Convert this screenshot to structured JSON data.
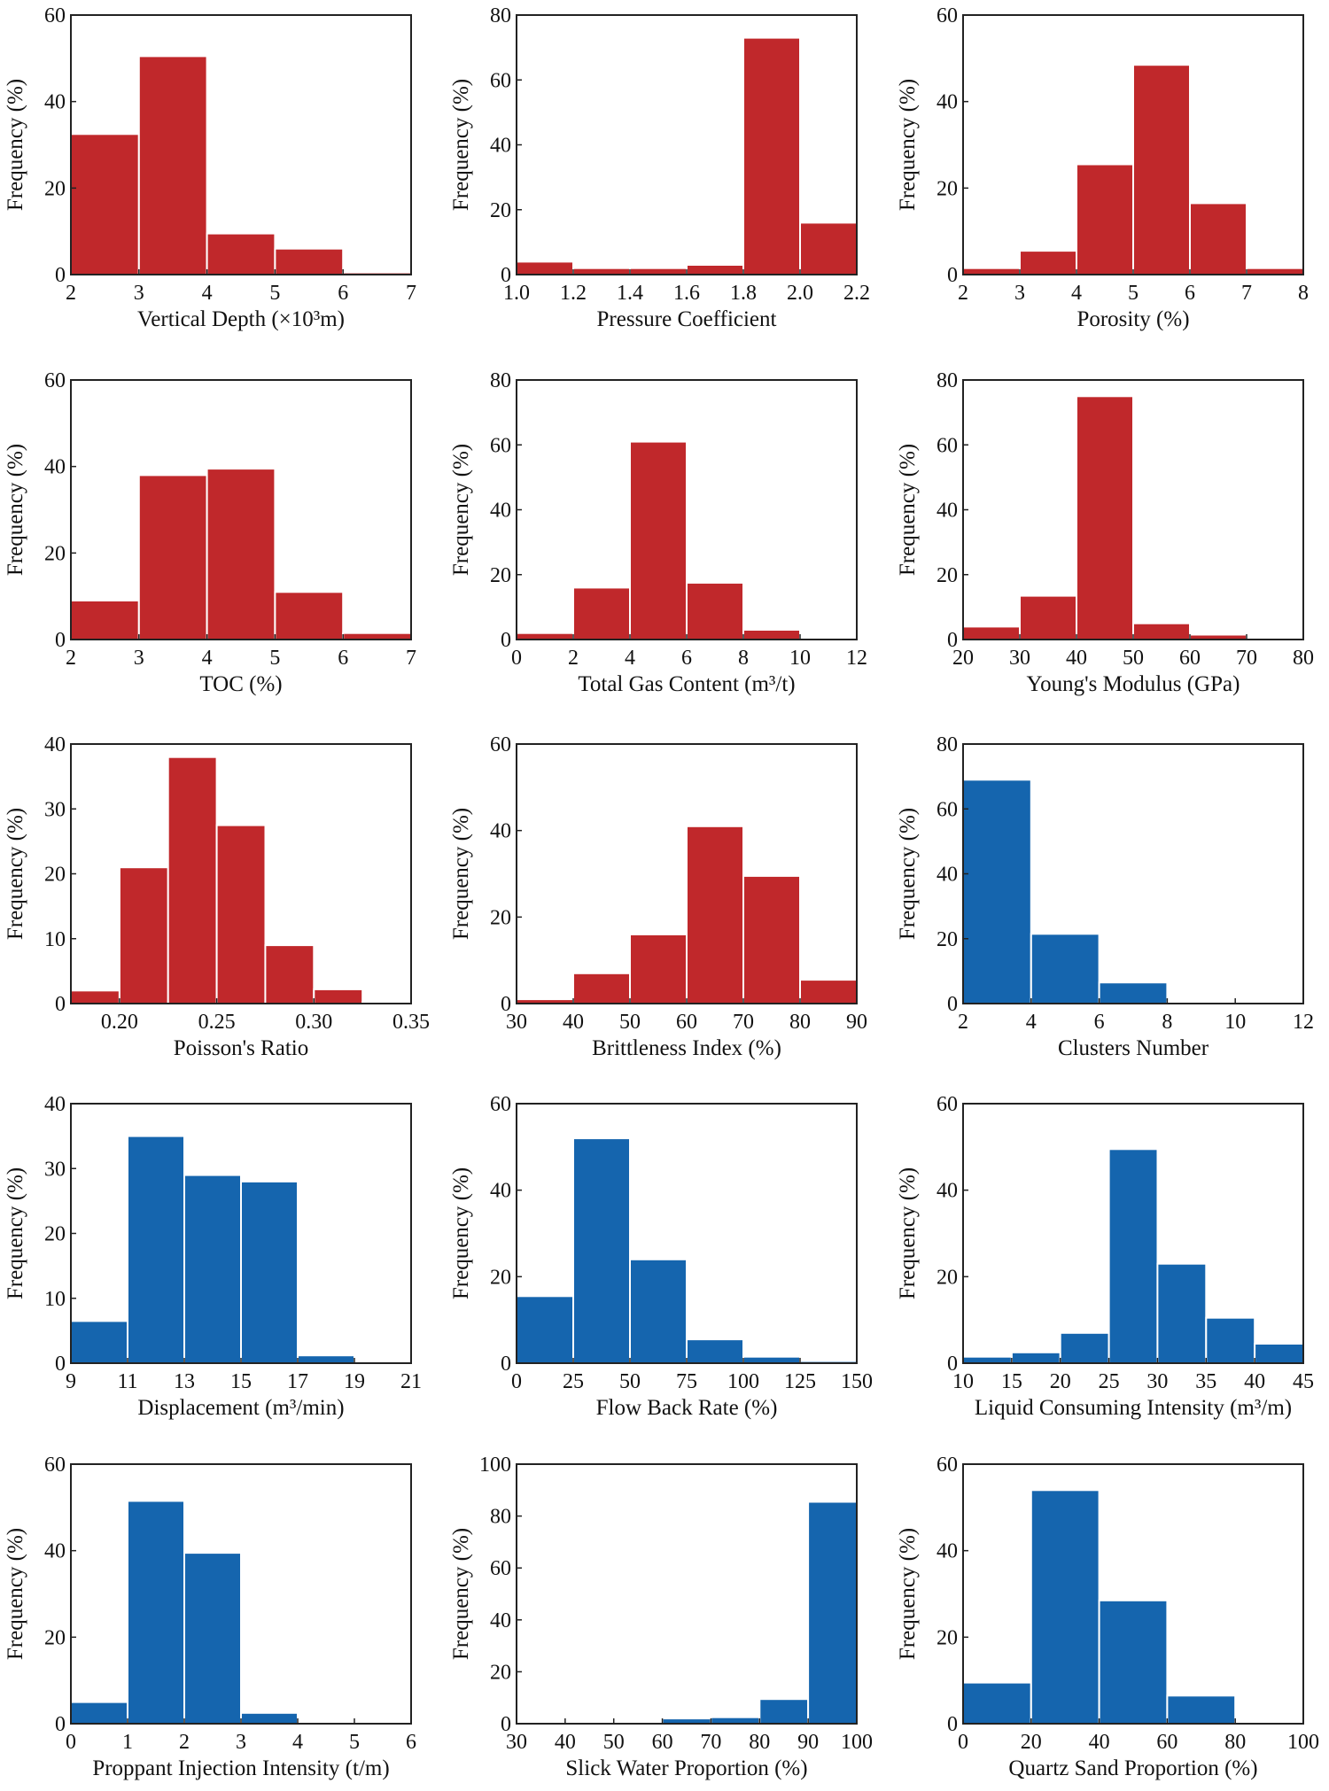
{
  "colors": {
    "red": "#c0282b",
    "blue": "#1565ae",
    "axis": "#222222"
  },
  "chart_data": [
    {
      "type": "bar",
      "title": "",
      "color": "red",
      "xlabel": "Vertical Depth (×10³m)",
      "ylabel": "Frequency (%)",
      "xlim": [
        2,
        7
      ],
      "ylim": [
        0,
        60
      ],
      "xticks": [
        "2",
        "3",
        "4",
        "5",
        "6",
        "7"
      ],
      "yticks": [
        "0",
        "20",
        "40",
        "60"
      ],
      "bins": [
        [
          2,
          3
        ],
        [
          3,
          4
        ],
        [
          4,
          5
        ],
        [
          5,
          6
        ],
        [
          6,
          7
        ]
      ],
      "values": [
        32.5,
        50.5,
        9.5,
        6,
        0.5
      ]
    },
    {
      "type": "bar",
      "title": "",
      "color": "red",
      "xlabel": "Pressure Coefficient",
      "ylabel": "Frequency (%)",
      "xlim": [
        1.0,
        2.2
      ],
      "ylim": [
        0,
        80
      ],
      "xticks": [
        "1.0",
        "1.2",
        "1.4",
        "1.6",
        "1.8",
        "2.0",
        "2.2"
      ],
      "yticks": [
        "0",
        "20",
        "40",
        "60",
        "80"
      ],
      "bins": [
        [
          1.0,
          1.2
        ],
        [
          1.2,
          1.4
        ],
        [
          1.4,
          1.6
        ],
        [
          1.6,
          1.8
        ],
        [
          1.8,
          2.0
        ],
        [
          2.0,
          2.2
        ]
      ],
      "values": [
        4,
        2,
        2,
        3,
        73,
        16
      ]
    },
    {
      "type": "bar",
      "title": "",
      "color": "red",
      "xlabel": "Porosity (%)",
      "ylabel": "Frequency (%)",
      "xlim": [
        2,
        8
      ],
      "ylim": [
        0,
        60
      ],
      "xticks": [
        "2",
        "3",
        "4",
        "5",
        "6",
        "7",
        "8"
      ],
      "yticks": [
        "0",
        "20",
        "40",
        "60"
      ],
      "bins": [
        [
          2,
          3
        ],
        [
          3,
          4
        ],
        [
          4,
          5
        ],
        [
          5,
          6
        ],
        [
          6,
          7
        ],
        [
          7,
          8
        ]
      ],
      "values": [
        1.5,
        5.5,
        25.5,
        48.5,
        16.5,
        1.5
      ]
    },
    {
      "type": "bar",
      "title": "",
      "color": "red",
      "xlabel": "TOC (%)",
      "ylabel": "Frequency (%)",
      "xlim": [
        2,
        7
      ],
      "ylim": [
        0,
        60
      ],
      "xticks": [
        "2",
        "3",
        "4",
        "5",
        "6",
        "7"
      ],
      "yticks": [
        "0",
        "20",
        "40",
        "60"
      ],
      "bins": [
        [
          2,
          3
        ],
        [
          3,
          4
        ],
        [
          4,
          5
        ],
        [
          5,
          6
        ],
        [
          6,
          7
        ]
      ],
      "values": [
        9,
        38,
        39.5,
        11,
        1.5
      ]
    },
    {
      "type": "bar",
      "title": "",
      "color": "red",
      "xlabel": "Total Gas Content (m³/t)",
      "ylabel": "Frequency (%)",
      "xlim": [
        0,
        12
      ],
      "ylim": [
        0,
        80
      ],
      "xticks": [
        "0",
        "2",
        "4",
        "6",
        "8",
        "10",
        "12"
      ],
      "yticks": [
        "0",
        "20",
        "40",
        "60",
        "80"
      ],
      "bins": [
        [
          0,
          2
        ],
        [
          2,
          4
        ],
        [
          4,
          6
        ],
        [
          6,
          8
        ],
        [
          8,
          10
        ],
        [
          10,
          12
        ]
      ],
      "values": [
        2,
        16,
        61,
        17.5,
        3,
        0.5
      ]
    },
    {
      "type": "bar",
      "title": "",
      "color": "red",
      "xlabel": "Young's Modulus (GPa)",
      "ylabel": "Frequency (%)",
      "xlim": [
        20,
        80
      ],
      "ylim": [
        0,
        80
      ],
      "xticks": [
        "20",
        "30",
        "40",
        "50",
        "60",
        "70",
        "80"
      ],
      "yticks": [
        "0",
        "20",
        "40",
        "60",
        "80"
      ],
      "bins": [
        [
          20,
          30
        ],
        [
          30,
          40
        ],
        [
          40,
          50
        ],
        [
          50,
          60
        ],
        [
          60,
          70
        ],
        [
          70,
          80
        ]
      ],
      "values": [
        4,
        13.5,
        75,
        5,
        1.5,
        0
      ]
    },
    {
      "type": "bar",
      "title": "",
      "color": "red",
      "xlabel": "Poisson's Ratio",
      "ylabel": "Frequency (%)",
      "xlim": [
        0.175,
        0.35
      ],
      "ylim": [
        0,
        40
      ],
      "xticks": [
        "0.20",
        "0.25",
        "0.30",
        "0.35"
      ],
      "xtickvals": [
        0.2,
        0.25,
        0.3,
        0.35
      ],
      "yticks": [
        "0",
        "10",
        "20",
        "30",
        "40"
      ],
      "bins": [
        [
          0.175,
          0.2
        ],
        [
          0.2,
          0.225
        ],
        [
          0.225,
          0.25
        ],
        [
          0.25,
          0.275
        ],
        [
          0.275,
          0.3
        ],
        [
          0.3,
          0.325
        ],
        [
          0.325,
          0.35
        ]
      ],
      "values": [
        2,
        21,
        38,
        27.5,
        9,
        2.2,
        0.2
      ]
    },
    {
      "type": "bar",
      "title": "",
      "color": "red",
      "xlabel": "Brittleness Index (%)",
      "ylabel": "Frequency (%)",
      "xlim": [
        30,
        90
      ],
      "ylim": [
        0,
        60
      ],
      "xticks": [
        "30",
        "40",
        "50",
        "60",
        "70",
        "80",
        "90"
      ],
      "yticks": [
        "0",
        "20",
        "40",
        "60"
      ],
      "bins": [
        [
          30,
          40
        ],
        [
          40,
          50
        ],
        [
          50,
          60
        ],
        [
          60,
          70
        ],
        [
          70,
          80
        ],
        [
          80,
          90
        ]
      ],
      "values": [
        1,
        7,
        16,
        41,
        29.5,
        5.5
      ]
    },
    {
      "type": "bar",
      "title": "",
      "color": "blue",
      "xlabel": "Clusters Number",
      "ylabel": "Frequency (%)",
      "xlim": [
        2,
        12
      ],
      "ylim": [
        0,
        80
      ],
      "xticks": [
        "2",
        "4",
        "6",
        "8",
        "10",
        "12"
      ],
      "yticks": [
        "0",
        "20",
        "40",
        "60",
        "80"
      ],
      "bins": [
        [
          2,
          4
        ],
        [
          4,
          6
        ],
        [
          6,
          8
        ],
        [
          8,
          10
        ],
        [
          10,
          12
        ]
      ],
      "values": [
        69,
        21.5,
        6.5,
        0.5,
        0.5
      ]
    },
    {
      "type": "bar",
      "title": "",
      "color": "blue",
      "xlabel": "Displacement (m³/min)",
      "ylabel": "Frequency (%)",
      "xlim": [
        9,
        21
      ],
      "ylim": [
        0,
        40
      ],
      "xticks": [
        "9",
        "11",
        "13",
        "15",
        "17",
        "19",
        "21"
      ],
      "yticks": [
        "0",
        "10",
        "20",
        "30",
        "40"
      ],
      "bins": [
        [
          9,
          11
        ],
        [
          11,
          13
        ],
        [
          13,
          15
        ],
        [
          15,
          17
        ],
        [
          17,
          19
        ],
        [
          19,
          21
        ]
      ],
      "values": [
        6.5,
        35,
        29,
        28,
        1.2,
        0.2
      ]
    },
    {
      "type": "bar",
      "title": "",
      "color": "blue",
      "xlabel": "Flow Back Rate (%)",
      "ylabel": "Frequency (%)",
      "xlim": [
        0,
        150
      ],
      "ylim": [
        0,
        60
      ],
      "xticks": [
        "0",
        "25",
        "50",
        "75",
        "100",
        "125",
        "150"
      ],
      "yticks": [
        "0",
        "20",
        "40",
        "60"
      ],
      "bins": [
        [
          0,
          25
        ],
        [
          25,
          50
        ],
        [
          50,
          75
        ],
        [
          75,
          100
        ],
        [
          100,
          125
        ],
        [
          125,
          150
        ]
      ],
      "values": [
        15.5,
        52,
        24,
        5.5,
        1.5,
        0.5
      ]
    },
    {
      "type": "bar",
      "title": "",
      "color": "blue",
      "xlabel": "Liquid Consuming Intensity (m³/m)",
      "ylabel": "Frequency (%)",
      "xlim": [
        10,
        45
      ],
      "ylim": [
        0,
        60
      ],
      "xticks": [
        "10",
        "15",
        "20",
        "25",
        "30",
        "35",
        "40",
        "45"
      ],
      "yticks": [
        "0",
        "20",
        "40",
        "60"
      ],
      "bins": [
        [
          10,
          15
        ],
        [
          15,
          20
        ],
        [
          20,
          25
        ],
        [
          25,
          30
        ],
        [
          30,
          35
        ],
        [
          35,
          40
        ],
        [
          40,
          45
        ]
      ],
      "values": [
        1.5,
        2.5,
        7,
        49.5,
        23,
        10.5,
        4.5
      ]
    },
    {
      "type": "bar",
      "title": "",
      "color": "blue",
      "xlabel": "Proppant Injection Intensity (t/m)",
      "ylabel": "Frequency (%)",
      "xlim": [
        0,
        6
      ],
      "ylim": [
        0,
        60
      ],
      "xticks": [
        "0",
        "1",
        "2",
        "3",
        "4",
        "5",
        "6"
      ],
      "yticks": [
        "0",
        "20",
        "40",
        "60"
      ],
      "bins": [
        [
          0,
          1
        ],
        [
          1,
          2
        ],
        [
          2,
          3
        ],
        [
          3,
          4
        ],
        [
          4,
          5
        ],
        [
          5,
          6
        ]
      ],
      "values": [
        5,
        51.5,
        39.5,
        2.5,
        0.3,
        0.2
      ]
    },
    {
      "type": "bar",
      "title": "",
      "color": "blue",
      "xlabel": "Slick Water Proportion (%)",
      "ylabel": "Frequency (%)",
      "xlim": [
        30,
        100
      ],
      "ylim": [
        0,
        100
      ],
      "xticks": [
        "30",
        "40",
        "50",
        "60",
        "70",
        "80",
        "90",
        "100"
      ],
      "yticks": [
        "0",
        "20",
        "40",
        "60",
        "80",
        "100"
      ],
      "bins": [
        [
          30,
          40
        ],
        [
          40,
          50
        ],
        [
          50,
          60
        ],
        [
          60,
          70
        ],
        [
          70,
          80
        ],
        [
          80,
          90
        ],
        [
          90,
          100
        ]
      ],
      "values": [
        0.2,
        0.5,
        0.2,
        2,
        2.5,
        9.5,
        85.5
      ]
    },
    {
      "type": "bar",
      "title": "",
      "color": "blue",
      "xlabel": "Quartz Sand Proportion  (%)",
      "ylabel": "Frequency (%)",
      "xlim": [
        0,
        100
      ],
      "ylim": [
        0,
        60
      ],
      "xticks": [
        "0",
        "20",
        "40",
        "60",
        "80",
        "100"
      ],
      "yticks": [
        "0",
        "20",
        "40",
        "60"
      ],
      "bins": [
        [
          0,
          20
        ],
        [
          20,
          40
        ],
        [
          40,
          60
        ],
        [
          60,
          80
        ],
        [
          80,
          100
        ]
      ],
      "values": [
        9.5,
        54,
        28.5,
        6.5,
        0.3
      ]
    }
  ]
}
